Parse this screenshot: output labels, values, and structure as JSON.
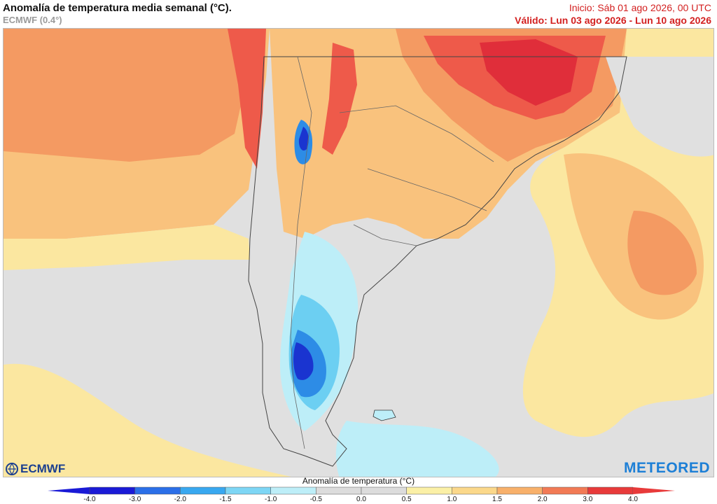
{
  "header": {
    "title": "Anomalía de temperatura media semanal (°C).",
    "model": "ECMWF (0.4°)",
    "init": "Inicio: Sáb 01 ago 2026, 00 UTC",
    "valid": "Válido: Lun 03 ago 2026 - Lun 10 ago 2026"
  },
  "logos": {
    "left": "ECMWF",
    "right": "METEORED"
  },
  "legend": {
    "title": "Anomalía de temperatura (°C)",
    "ticks": [
      "-4.0",
      "-3.0",
      "-2.0",
      "-1.5",
      "-1.0",
      "-0.5",
      "0.0",
      "0.5",
      "1.0",
      "1.5",
      "2.0",
      "3.0",
      "4.0"
    ],
    "colors": [
      "#1a1ad6",
      "#2b6fe8",
      "#38a8f0",
      "#7dd6f5",
      "#bdeef8",
      "#dcdcdc",
      "#dcdcdc",
      "#fbf0a6",
      "#fbd88a",
      "#f8b06a",
      "#f27a55",
      "#e83a3a"
    ]
  },
  "colors": {
    "neutral": "#e0e0e0",
    "light_warm": "#fbe7a0",
    "warm": "#f9c27d",
    "orange": "#f49a62",
    "hot": "#ee5a4a",
    "very_hot": "#e02e3a",
    "light_cold": "#bdeef8",
    "cold": "#6ccff2",
    "colder": "#2d8ce6",
    "coldest": "#1a34d0"
  }
}
